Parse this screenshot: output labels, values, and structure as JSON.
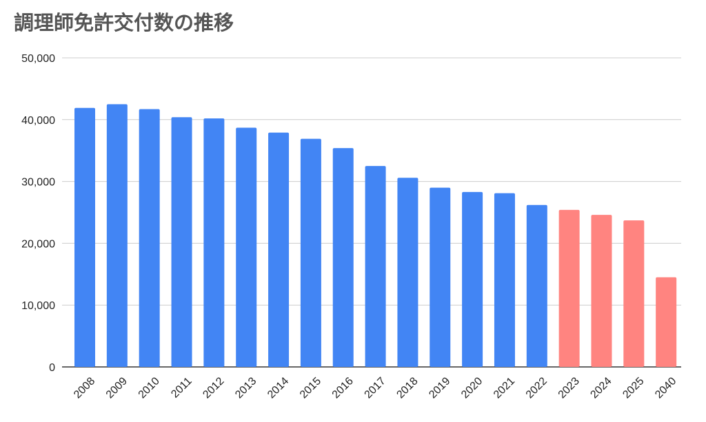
{
  "chart_data": {
    "type": "bar",
    "title": "調理師免許交付数の推移",
    "xlabel": "",
    "ylabel": "",
    "categories": [
      "2008",
      "2009",
      "2010",
      "2011",
      "2012",
      "2013",
      "2014",
      "2015",
      "2016",
      "2017",
      "2018",
      "2019",
      "2020",
      "2021",
      "2022",
      "2023",
      "2024",
      "2025",
      "2040"
    ],
    "values": [
      41900,
      42500,
      41700,
      40400,
      40200,
      38700,
      37900,
      36900,
      35400,
      32500,
      30600,
      29000,
      28300,
      28100,
      26200,
      25400,
      24600,
      23700,
      14500
    ],
    "ylim": [
      0,
      50000
    ],
    "yticks": [
      0,
      10000,
      20000,
      30000,
      40000,
      50000
    ],
    "ytick_labels": [
      "0",
      "10,000",
      "20,000",
      "30,000",
      "40,000",
      "50,000"
    ],
    "grid": true,
    "colors": {
      "actual": "#4285f4",
      "projected": "#ff8480"
    },
    "projected_from_index": 15
  }
}
